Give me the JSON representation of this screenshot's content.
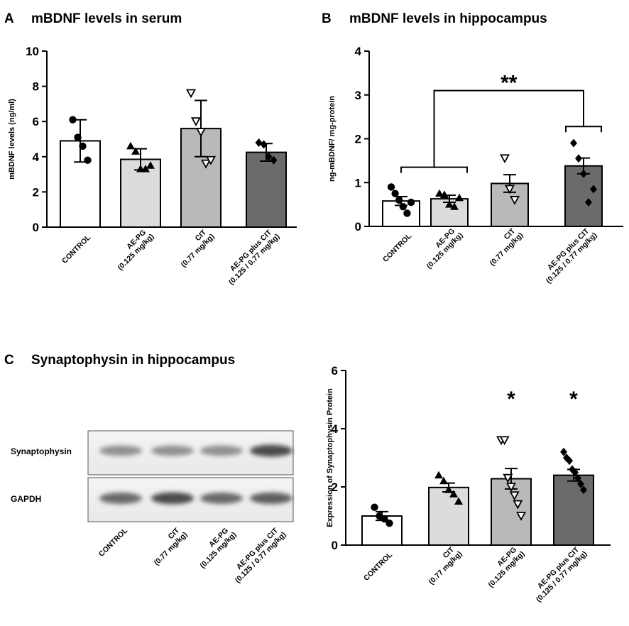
{
  "panels": {
    "A": {
      "letter": "A",
      "title": "mBDNF levels in serum"
    },
    "B": {
      "letter": "B",
      "title": "mBDNF levels in hippocampus"
    },
    "C": {
      "letter": "C",
      "title": "Synaptophysin in hippocampus"
    }
  },
  "blot": {
    "row_labels": [
      "Synaptophysin",
      "GAPDH"
    ],
    "lanes": [
      [
        "CONTROL"
      ],
      [
        "CIT",
        "(0.77 mg/kg)"
      ],
      [
        "AE-PG",
        "(0.125 mg/kg)"
      ],
      [
        "AE-PG plus CIT",
        "(0.125 / 0.77 mg/kg)"
      ]
    ],
    "band_intensity": {
      "Synaptophysin": [
        0.45,
        0.45,
        0.45,
        0.8
      ],
      "GAPDH": [
        0.65,
        0.8,
        0.65,
        0.7
      ]
    }
  },
  "chart_data": [
    {
      "id": "A",
      "type": "bar",
      "title": "mBDNF levels in serum",
      "ylabel": "mBDNF levels (ng/ml)",
      "ylim": [
        0,
        10
      ],
      "yticks": [
        "0",
        "2",
        "4",
        "6",
        "8",
        "10"
      ],
      "categories": [
        [
          "CONTROL"
        ],
        [
          "AE-PG",
          "(0.125 mg/kg)"
        ],
        [
          "CIT",
          "(0.77 mg/kg)"
        ],
        [
          "AE-PG plus CIT",
          "(0.125 / 0.77 mg/kg)"
        ]
      ],
      "values": [
        4.9,
        3.85,
        5.6,
        4.25
      ],
      "error": [
        1.2,
        0.6,
        1.6,
        0.5
      ],
      "fill_colors": [
        "#ffffff",
        "#dcdcdc",
        "#b9b9b9",
        "#6b6b6b"
      ],
      "markers": [
        "circle",
        "triangle",
        "triangle-down",
        "diamond"
      ],
      "points": [
        [
          6.1,
          5.1,
          4.6,
          3.8
        ],
        [
          4.6,
          4.3,
          3.3,
          3.3,
          3.5
        ],
        [
          7.6,
          6.0,
          5.4,
          3.6,
          3.8
        ],
        [
          4.8,
          4.7,
          4.0,
          3.8
        ]
      ]
    },
    {
      "id": "B",
      "type": "bar",
      "title": "mBDNF levels in hippocampus",
      "ylabel": "ng-mBDNF/ mg-protein",
      "ylim": [
        0,
        4
      ],
      "yticks": [
        "0",
        "1",
        "2",
        "3",
        "4"
      ],
      "categories": [
        [
          "CONTROL"
        ],
        [
          "AE-PG",
          "(0.125 mg/kg)"
        ],
        [
          "CIT",
          "(0.77 mg/kg)"
        ],
        [
          "AE-PG plus CIT",
          "(0.125 / 0.77 mg/kg)"
        ]
      ],
      "values": [
        0.58,
        0.63,
        0.98,
        1.38
      ],
      "error": [
        0.1,
        0.08,
        0.2,
        0.18
      ],
      "fill_colors": [
        "#ffffff",
        "#dcdcdc",
        "#b9b9b9",
        "#6b6b6b"
      ],
      "markers": [
        "circle",
        "triangle",
        "triangle-down",
        "diamond"
      ],
      "points": [
        [
          0.9,
          0.75,
          0.6,
          0.45,
          0.3,
          0.55
        ],
        [
          0.75,
          0.72,
          0.5,
          0.45,
          0.65
        ],
        [
          1.55,
          0.85,
          0.6
        ],
        [
          1.9,
          1.55,
          1.2,
          0.55,
          0.85
        ]
      ],
      "significance": {
        "label": "**",
        "between": [
          [
            0,
            1
          ],
          [
            3
          ]
        ],
        "bracket_level": 3.1
      }
    },
    {
      "id": "C",
      "type": "bar",
      "title": "",
      "ylabel": "Expression of Synaptophysin Protein",
      "ylim": [
        0,
        6
      ],
      "yticks": [
        "0",
        "2",
        "4",
        "6"
      ],
      "categories": [
        [
          "CONTROL"
        ],
        [
          "CIT",
          "(0.77 mg/kg)"
        ],
        [
          "AE-PG",
          "(0.125 mg/kg)"
        ],
        [
          "AE-PG plus CIT",
          "(0.125 / 0.77 mg/kg)"
        ]
      ],
      "values": [
        1.0,
        1.98,
        2.28,
        2.4
      ],
      "error": [
        0.15,
        0.15,
        0.35,
        0.2
      ],
      "fill_colors": [
        "#ffffff",
        "#dcdcdc",
        "#b9b9b9",
        "#6b6b6b"
      ],
      "markers": [
        "circle",
        "triangle",
        "triangle-down",
        "diamond"
      ],
      "points": [
        [
          1.3,
          1.0,
          0.9,
          0.75
        ],
        [
          2.4,
          2.2,
          1.9,
          1.75,
          1.5
        ],
        [
          3.6,
          3.6,
          2.3,
          2.0,
          1.7,
          1.4,
          1.0
        ],
        [
          3.2,
          3.0,
          2.9,
          2.6,
          2.5,
          2.3,
          2.1,
          1.9
        ]
      ],
      "stars": [
        "",
        "",
        "*",
        "*"
      ]
    }
  ]
}
